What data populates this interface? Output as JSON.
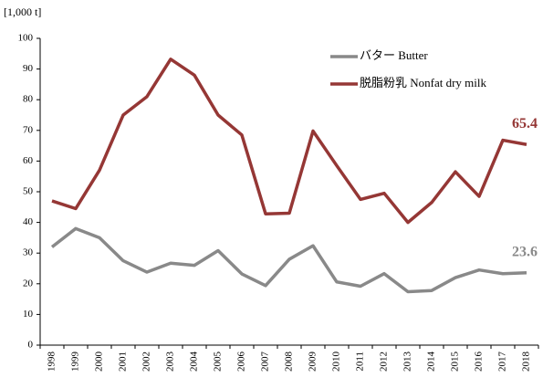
{
  "chart_data": {
    "type": "line",
    "ylabel": "[1,000 t]",
    "categories": [
      "1998",
      "1999",
      "2000",
      "2001",
      "2002",
      "2003",
      "2004",
      "2005",
      "2006",
      "2007",
      "2008",
      "2009",
      "2010",
      "2011",
      "2012",
      "2013",
      "2014",
      "2015",
      "2016",
      "2017",
      "2018"
    ],
    "series": [
      {
        "name": "バター Butter",
        "color": "#898989",
        "values": [
          32,
          38,
          35,
          27.5,
          23.8,
          26.7,
          26,
          30.8,
          23.2,
          19.4,
          28,
          32.4,
          20.6,
          19.2,
          23.3,
          17.4,
          17.8,
          22,
          24.5,
          23.3,
          23.6
        ],
        "value_labels": [
          null,
          null,
          null,
          null,
          null,
          null,
          null,
          null,
          null,
          null,
          null,
          null,
          null,
          null,
          null,
          null,
          null,
          null,
          null,
          null,
          "23.6"
        ]
      },
      {
        "name": "脱脂粉乳 Nonfat dry milk",
        "color": "#953735",
        "values": [
          47,
          44.5,
          57,
          75,
          81,
          93.2,
          88,
          75,
          68.5,
          42.8,
          43,
          69.8,
          58.5,
          47.5,
          49.5,
          40,
          46.5,
          56.5,
          48.5,
          66.8,
          65.4
        ],
        "value_labels": [
          null,
          null,
          null,
          null,
          null,
          null,
          null,
          null,
          null,
          null,
          null,
          null,
          null,
          null,
          null,
          null,
          null,
          null,
          null,
          null,
          "65.4"
        ]
      }
    ],
    "ylim": [
      0,
      100
    ],
    "yticks": [
      0,
      10,
      20,
      30,
      40,
      50,
      60,
      70,
      80,
      90,
      100
    ],
    "grid": false,
    "legend": "upper right"
  }
}
